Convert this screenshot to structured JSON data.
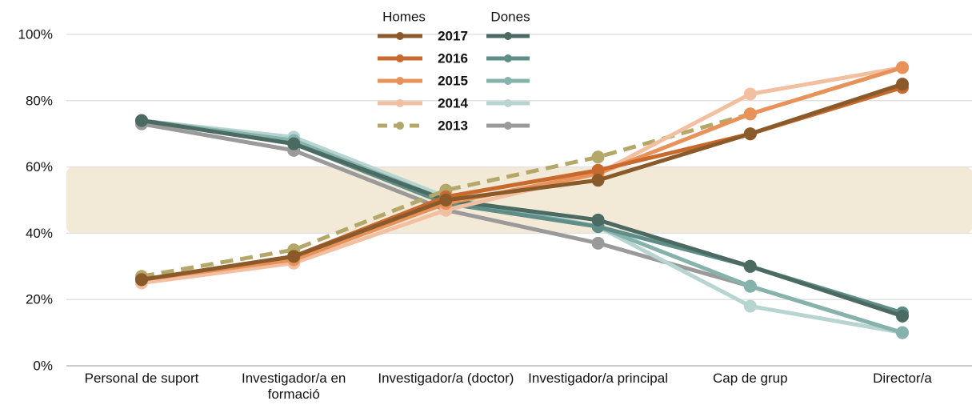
{
  "chart_data": {
    "type": "line",
    "categories": [
      "Personal de suport",
      "Investigador/a en formació",
      "Investigador/a (doctor)",
      "Investigador/a principal",
      "Cap de grup",
      "Director/a"
    ],
    "ylim": [
      0,
      100
    ],
    "yticks": [
      {
        "value": 0,
        "label": "0%"
      },
      {
        "value": 20,
        "label": "20%"
      },
      {
        "value": 40,
        "label": "40%"
      },
      {
        "value": 60,
        "label": "60%"
      },
      {
        "value": 80,
        "label": "80%"
      },
      {
        "value": 100,
        "label": "100%"
      }
    ],
    "grid": true,
    "shaded_range": [
      40,
      60
    ],
    "shaded_color": "#f3e9d7",
    "groups": [
      {
        "name": "Homes",
        "series": [
          {
            "name": "2017",
            "color": "#8b5a2b",
            "values": [
              26,
              33,
              50,
              56,
              70,
              85
            ]
          },
          {
            "name": "2016",
            "color": "#c8692e",
            "values": [
              26,
              33,
              51,
              59,
              70,
              84
            ]
          },
          {
            "name": "2015",
            "color": "#e8925a",
            "values": [
              26,
              32,
              49,
              58,
              76,
              90
            ]
          },
          {
            "name": "2014",
            "color": "#f2bfa0",
            "values": [
              25,
              31,
              47,
              58,
              82,
              90
            ]
          },
          {
            "name": "2013",
            "color": "#b3a86a",
            "dashed": true,
            "values": [
              27,
              35,
              53,
              63,
              76,
              90
            ]
          }
        ]
      },
      {
        "name": "Dones",
        "series": [
          {
            "color": "#4a6a62",
            "values": [
              74,
              67,
              50,
              44,
              30,
              15
            ]
          },
          {
            "color": "#5f8e88",
            "values": [
              74,
              67,
              49,
              42,
              30,
              16
            ]
          },
          {
            "color": "#86b2ac",
            "values": [
              74,
              68,
              50,
              42,
              24,
              10
            ]
          },
          {
            "color": "#b8d4d0",
            "values": [
              74,
              69,
              51,
              42,
              18,
              10
            ]
          },
          {
            "color": "#9a9a9a",
            "values": [
              73,
              65,
              47,
              37,
              24,
              10
            ]
          }
        ]
      }
    ]
  }
}
